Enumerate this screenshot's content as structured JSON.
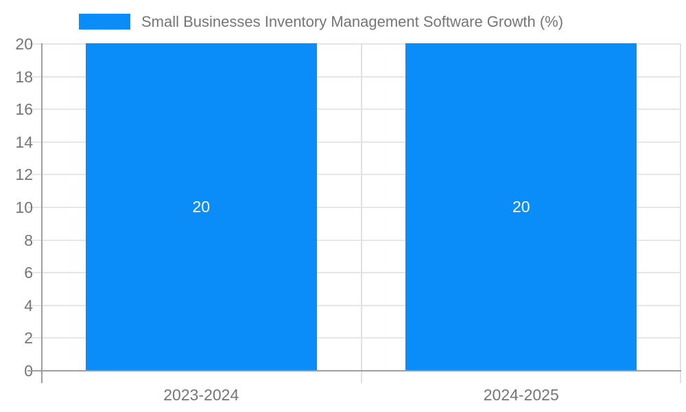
{
  "chart_data": {
    "type": "bar",
    "title": "",
    "legend": {
      "position": "top-left",
      "label": "Small Businesses Inventory Management Software Growth (%)"
    },
    "categories": [
      "2023-2024",
      "2024-2025"
    ],
    "series": [
      {
        "name": "Small Businesses Inventory Management Software Growth (%)",
        "values": [
          20,
          20
        ]
      }
    ],
    "bar_value_labels": [
      "20",
      "20"
    ],
    "xlabel": "",
    "ylabel": "",
    "ylim": [
      0,
      20
    ],
    "ytick_step": 2,
    "yticks": [
      0,
      2,
      4,
      6,
      8,
      10,
      12,
      14,
      16,
      18,
      20
    ],
    "grid": true,
    "colors": {
      "bar": "#0A8DF8",
      "bar_label_text": "#ffffff",
      "axis_text": "#757575",
      "grid_line": "#e6e6e6",
      "category_divider_line": "#e0e0e0",
      "axis_line": "#9e9e9e",
      "background": "#ffffff"
    }
  }
}
